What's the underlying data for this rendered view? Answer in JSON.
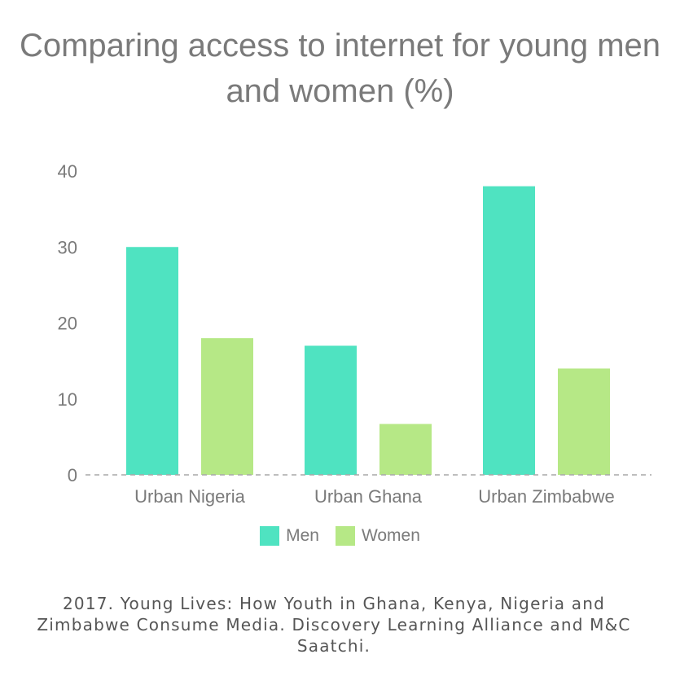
{
  "chart_data": {
    "type": "bar",
    "title": "Comparing access to internet for young men and women (%)",
    "categories": [
      "Urban Nigeria",
      "Urban Ghana",
      "Urban Zimbabwe"
    ],
    "series": [
      {
        "name": "Men",
        "values": [
          30,
          17,
          38
        ],
        "color": "#4fe3c1"
      },
      {
        "name": "Women",
        "values": [
          18,
          6.7,
          14
        ],
        "color": "#b6e886"
      }
    ],
    "ylim": [
      0,
      40
    ],
    "yticks": [
      "0",
      "10",
      "20",
      "30",
      "40"
    ],
    "xlabel": "",
    "ylabel": "",
    "grid": false,
    "baseline": "dashed",
    "legend_position": "bottom-center"
  },
  "source": "2017. Young Lives: How Youth in Ghana, Kenya, Nigeria and Zimbabwe Consume Media. Discovery Learning Alliance and M&C Saatchi."
}
